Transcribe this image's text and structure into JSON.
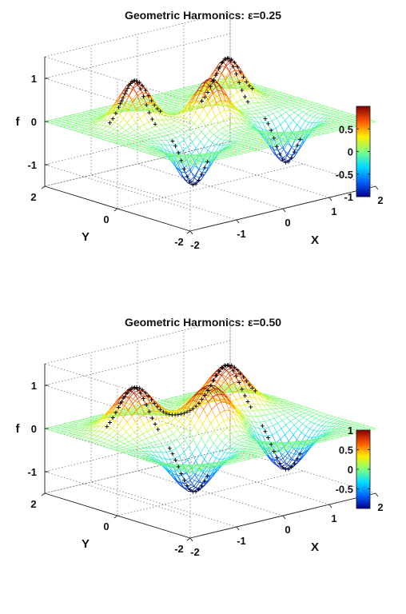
{
  "chart_data": [
    {
      "type": "surface",
      "title": "Geometric Harmonics: ε=0.25",
      "xlabel": "X",
      "ylabel": "Y",
      "zlabel": "f",
      "xlim": [
        -2,
        2
      ],
      "ylim": [
        -2,
        2
      ],
      "zlim": [
        -1.5,
        1.5
      ],
      "x_ticks": [
        "-2",
        "-1",
        "0",
        "1",
        "2"
      ],
      "y_ticks": [
        "-2",
        "0",
        "2"
      ],
      "z_ticks": [
        "-1",
        "0",
        "1"
      ],
      "colorbar_ticks": [
        "-1",
        "-0.5",
        "0",
        "0.5"
      ],
      "colorbar_range": [
        -1,
        1
      ],
      "colormap": [
        "#00008f",
        "#0066ff",
        "#00ddff",
        "#7fff7f",
        "#ffee00",
        "#ff5500",
        "#800000"
      ],
      "sample_marker": "+",
      "grid": true,
      "epsilon": 0.25
    },
    {
      "type": "surface",
      "title": "Geometric Harmonics: ε=0.50",
      "xlabel": "X",
      "ylabel": "Y",
      "zlabel": "f",
      "xlim": [
        -2,
        2
      ],
      "ylim": [
        -2,
        2
      ],
      "zlim": [
        -1.5,
        1.5
      ],
      "x_ticks": [
        "-2",
        "-1",
        "0",
        "1",
        "2"
      ],
      "y_ticks": [
        "-2",
        "0",
        "2"
      ],
      "z_ticks": [
        "-1",
        "0",
        "1"
      ],
      "colorbar_ticks": [
        "-0.5",
        "0",
        "0.5",
        "1"
      ],
      "colorbar_range": [
        -1,
        1
      ],
      "colormap": [
        "#00008f",
        "#0066ff",
        "#00ddff",
        "#7fff7f",
        "#ffee00",
        "#ff5500",
        "#800000"
      ],
      "sample_marker": "+",
      "grid": true,
      "epsilon": 0.5
    }
  ]
}
